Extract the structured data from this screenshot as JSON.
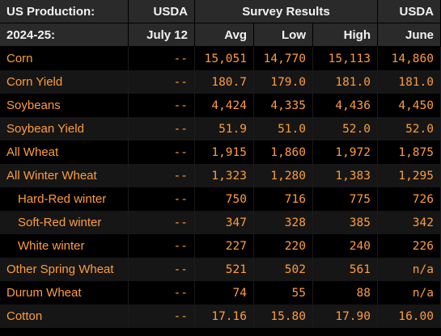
{
  "header": {
    "row1": {
      "title": "US Production:",
      "usda": "USDA",
      "survey": "Survey Results",
      "usda2": "USDA"
    },
    "row2": {
      "year": "2024-25:",
      "date": "July 12",
      "avg": "Avg",
      "low": "Low",
      "high": "High",
      "june": "June"
    }
  },
  "rows": [
    {
      "label": "Corn",
      "usda": "--",
      "avg": "15,051",
      "low": "14,770",
      "high": "15,113",
      "june": "14,860",
      "indent": false
    },
    {
      "label": "Corn Yield",
      "usda": "--",
      "avg": "180.7",
      "low": "179.0",
      "high": "181.0",
      "june": "181.0",
      "indent": false
    },
    {
      "label": "Soybeans",
      "usda": "--",
      "avg": "4,424",
      "low": "4,335",
      "high": "4,436",
      "june": "4,450",
      "indent": false
    },
    {
      "label": "Soybean Yield",
      "usda": "--",
      "avg": "51.9",
      "low": "51.0",
      "high": "52.0",
      "june": "52.0",
      "indent": false
    },
    {
      "label": "All Wheat",
      "usda": "--",
      "avg": "1,915",
      "low": "1,860",
      "high": "1,972",
      "june": "1,875",
      "indent": false
    },
    {
      "label": "All Winter Wheat",
      "usda": "--",
      "avg": "1,323",
      "low": "1,280",
      "high": "1,383",
      "june": "1,295",
      "indent": false
    },
    {
      "label": "Hard-Red winter",
      "usda": "--",
      "avg": "750",
      "low": "716",
      "high": "775",
      "june": "726",
      "indent": true
    },
    {
      "label": "Soft-Red winter",
      "usda": "--",
      "avg": "347",
      "low": "328",
      "high": "385",
      "june": "342",
      "indent": true
    },
    {
      "label": "White winter",
      "usda": "--",
      "avg": "227",
      "low": "220",
      "high": "240",
      "june": "226",
      "indent": true
    },
    {
      "label": "Other Spring Wheat",
      "usda": "--",
      "avg": "521",
      "low": "502",
      "high": "561",
      "june": "n/a",
      "indent": false
    },
    {
      "label": "Durum Wheat",
      "usda": "--",
      "avg": "74",
      "low": "55",
      "high": "88",
      "june": "n/a",
      "indent": false
    },
    {
      "label": "Cotton",
      "usda": "--",
      "avg": "17.16",
      "low": "15.80",
      "high": "17.90",
      "june": "16.00",
      "indent": false
    }
  ],
  "colors": {
    "background": "#000000",
    "header_bg": "#2a2a2a",
    "header_text": "#f2f2f2",
    "row_text": "#ff9d3a",
    "alt_row_bg": "#161616"
  }
}
